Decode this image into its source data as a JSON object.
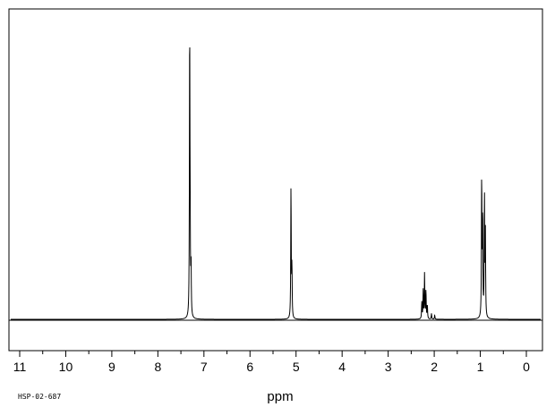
{
  "chart_data": {
    "type": "line",
    "xlabel": "ppm",
    "ylabel": "",
    "title": "",
    "xlim": [
      11.0,
      0.0
    ],
    "x_reversed": true,
    "ylim": [
      0,
      1.0
    ],
    "major_ticks": [
      11,
      10,
      9,
      8,
      7,
      6,
      5,
      4,
      3,
      2,
      1,
      0
    ],
    "tick_labels": [
      "11",
      "10",
      "9",
      "8",
      "7",
      "6",
      "5",
      "4",
      "3",
      "2",
      "1",
      "0"
    ],
    "minor_tick_step": 0.5,
    "grid": false,
    "series": [
      {
        "peaks": [
          {
            "ppm": 7.31,
            "intensity": 1.0
          },
          {
            "ppm": 7.3,
            "intensity": 0.27
          },
          {
            "ppm": 7.28,
            "intensity": 0.18
          },
          {
            "ppm": 5.11,
            "intensity": 0.47
          },
          {
            "ppm": 5.09,
            "intensity": 0.18
          },
          {
            "ppm": 2.27,
            "intensity": 0.06
          },
          {
            "ppm": 2.24,
            "intensity": 0.1
          },
          {
            "ppm": 2.21,
            "intensity": 0.16
          },
          {
            "ppm": 2.18,
            "intensity": 0.1
          },
          {
            "ppm": 2.15,
            "intensity": 0.05
          },
          {
            "ppm": 2.06,
            "intensity": 0.02
          },
          {
            "ppm": 1.99,
            "intensity": 0.015
          },
          {
            "ppm": 0.97,
            "intensity": 0.5
          },
          {
            "ppm": 0.95,
            "intensity": 0.36
          },
          {
            "ppm": 0.91,
            "intensity": 0.43
          },
          {
            "ppm": 0.89,
            "intensity": 0.3
          }
        ]
      }
    ]
  },
  "footer": {
    "code": "HSP-02-687"
  },
  "colors": {
    "line": "#000000",
    "background": "#ffffff"
  }
}
